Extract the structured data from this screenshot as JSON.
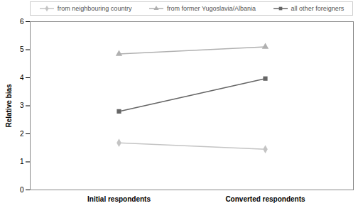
{
  "chart_data": {
    "type": "line",
    "categories": [
      "Initial respondents",
      "Converted respondents"
    ],
    "y_label": "Relative bias",
    "series": [
      {
        "name": "from neighbouring country",
        "color": "#c4c4c4",
        "marker": "diamond",
        "values": [
          1.68,
          1.45
        ]
      },
      {
        "name": "from former Yugoslavia/Albania",
        "color": "#b0b0b0",
        "marker": "triangle",
        "values": [
          4.85,
          5.1
        ]
      },
      {
        "name": "all other foreigners",
        "color": "#666666",
        "marker": "square",
        "values": [
          2.8,
          3.97
        ]
      }
    ],
    "ylim": [
      0,
      6
    ],
    "yticks": [
      0,
      1,
      2,
      3,
      4,
      5,
      6
    ],
    "grid": false,
    "legend": "top"
  }
}
